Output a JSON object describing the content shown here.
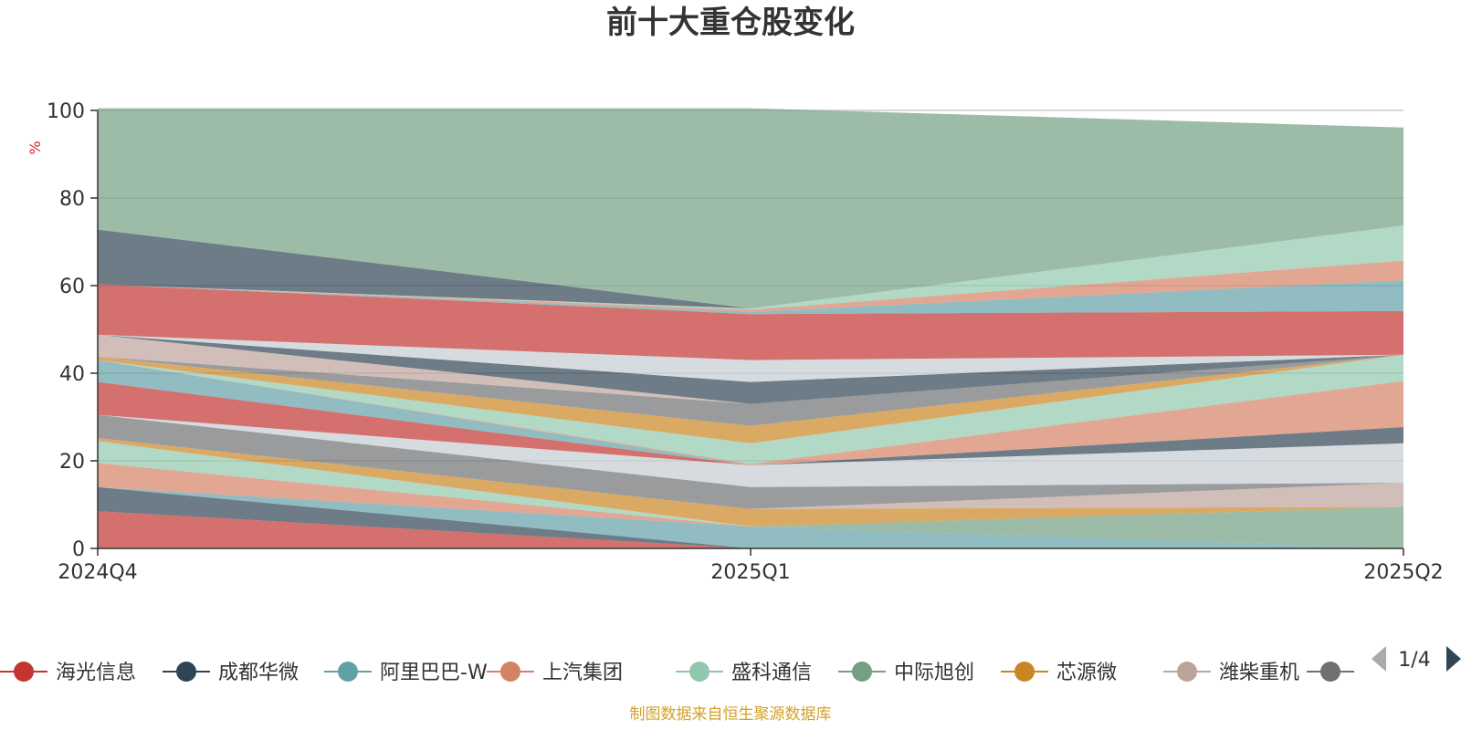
{
  "chart_data": {
    "type": "area",
    "stacked": true,
    "title": "前十大重仓股变化",
    "unit": "%",
    "categories": [
      "2024Q4",
      "2025Q1",
      "2025Q2"
    ],
    "ylim": [
      0,
      100
    ],
    "yticks": [
      0,
      20,
      40,
      60,
      80,
      100
    ],
    "grid": true,
    "legend_position": "bottom",
    "legend_page": "1/4",
    "series": [
      {
        "name": "海光信息",
        "color": "#c23531",
        "values": [
          8.5,
          0,
          0
        ]
      },
      {
        "name": "成都华微",
        "color": "#2f4554",
        "values": [
          5.5,
          0,
          0
        ]
      },
      {
        "name": "阿里巴巴-W",
        "color": "#61a0a8",
        "values": [
          0,
          5,
          0
        ]
      },
      {
        "name": "上汽集团",
        "color": "#d48265",
        "values": [
          5.5,
          0,
          0
        ]
      },
      {
        "name": "盛科通信",
        "color": "#91c7ae",
        "values": [
          5,
          0,
          0
        ]
      },
      {
        "name": "中际旭创",
        "color": "#749f83",
        "values": [
          0,
          0,
          9.5
        ]
      },
      {
        "name": "芯源微",
        "color": "#ca8622",
        "values": [
          0.7,
          4,
          0
        ]
      },
      {
        "name": "潍柴重机",
        "color": "#bda29a",
        "values": [
          0,
          0,
          5.5
        ]
      },
      {
        "name": "",
        "color": "#6e7074",
        "values": [
          5.3,
          5,
          0
        ]
      },
      {
        "name": "",
        "color": "#c4ccd3",
        "values": [
          0,
          5,
          9
        ]
      },
      {
        "name": "",
        "color": "#c23531",
        "values": [
          7.5,
          0,
          0
        ]
      },
      {
        "name": "",
        "color": "#2f4554",
        "values": [
          0,
          0,
          3.7
        ]
      },
      {
        "name": "",
        "color": "#61a0a8",
        "values": [
          5,
          0,
          0
        ]
      },
      {
        "name": "",
        "color": "#d48265",
        "values": [
          0,
          0.3,
          10.5
        ]
      },
      {
        "name": "",
        "color": "#91c7ae",
        "values": [
          0,
          4.7,
          6
        ]
      },
      {
        "name": "",
        "color": "#ca8622",
        "values": [
          0.8,
          4,
          0
        ]
      },
      {
        "name": "",
        "color": "#6e7074",
        "values": [
          0,
          5,
          0
        ]
      },
      {
        "name": "",
        "color": "#bda29a",
        "values": [
          5,
          0,
          0
        ]
      },
      {
        "name": "",
        "color": "#2f4554",
        "values": [
          0,
          5,
          0
        ]
      },
      {
        "name": "",
        "color": "#c4ccd3",
        "values": [
          0,
          5,
          0
        ]
      },
      {
        "name": "",
        "color": "#c23531",
        "values": [
          11.5,
          10.5,
          10
        ]
      },
      {
        "name": "",
        "color": "#61a0a8",
        "values": [
          0,
          0.5,
          7
        ]
      },
      {
        "name": "",
        "color": "#d48265",
        "values": [
          0,
          0.5,
          4.5
        ]
      },
      {
        "name": "",
        "color": "#91c7ae",
        "values": [
          0,
          0.3,
          8
        ]
      },
      {
        "name": "",
        "color": "#2f4554",
        "values": [
          12.5,
          0,
          0
        ]
      },
      {
        "name": "",
        "color": "#749f83",
        "values": [
          27.7,
          45.7,
          22.4
        ]
      }
    ]
  },
  "footer": {
    "source": "制图数据来自恒生聚源数据库"
  },
  "icons": {
    "prev": "triangle-left-icon",
    "next": "triangle-right-icon",
    "legend_marker": "circle-line-marker"
  }
}
